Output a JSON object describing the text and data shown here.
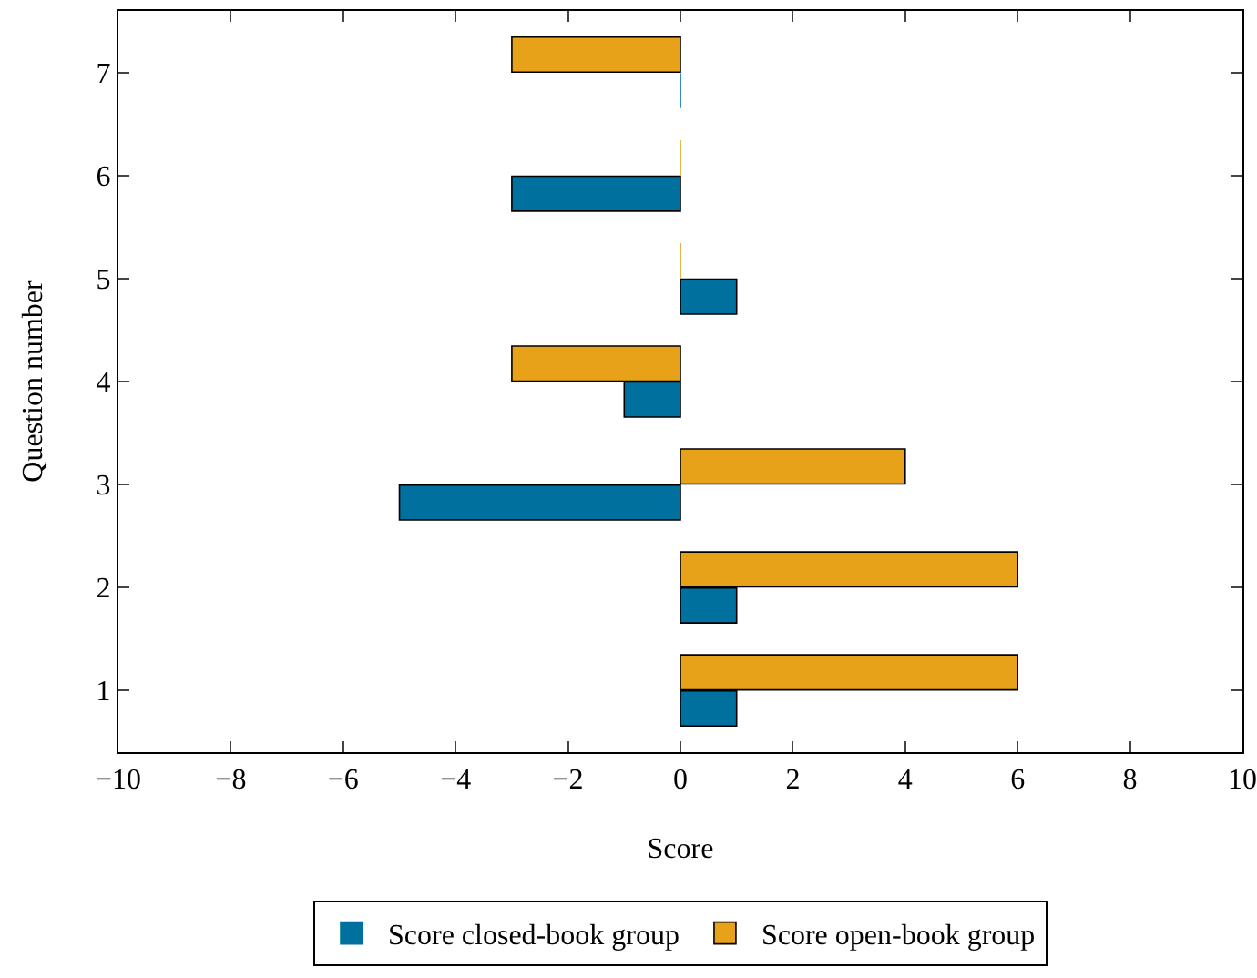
{
  "chart_data": {
    "type": "bar",
    "orientation": "horizontal",
    "xlabel": "Score",
    "ylabel": "Question number",
    "categories": [
      "7",
      "6",
      "5",
      "4",
      "3",
      "2",
      "1"
    ],
    "series": [
      {
        "name": "Score closed-book group",
        "color": "#00709e",
        "values": [
          0,
          -3,
          1,
          -1,
          -5,
          1,
          1
        ]
      },
      {
        "name": "Score open-book group",
        "color": "#e8a21a",
        "values": [
          -3,
          0,
          0,
          -3,
          4,
          6,
          6
        ]
      }
    ],
    "xlim": [
      -10,
      10
    ],
    "xticks": [
      {
        "value": -10,
        "label": "−10"
      },
      {
        "value": -8,
        "label": "−8"
      },
      {
        "value": -6,
        "label": "−6"
      },
      {
        "value": -4,
        "label": "−4"
      },
      {
        "value": -2,
        "label": "−2"
      },
      0,
      2,
      4,
      6,
      8,
      10
    ],
    "grid": false,
    "legend": "bottom"
  }
}
